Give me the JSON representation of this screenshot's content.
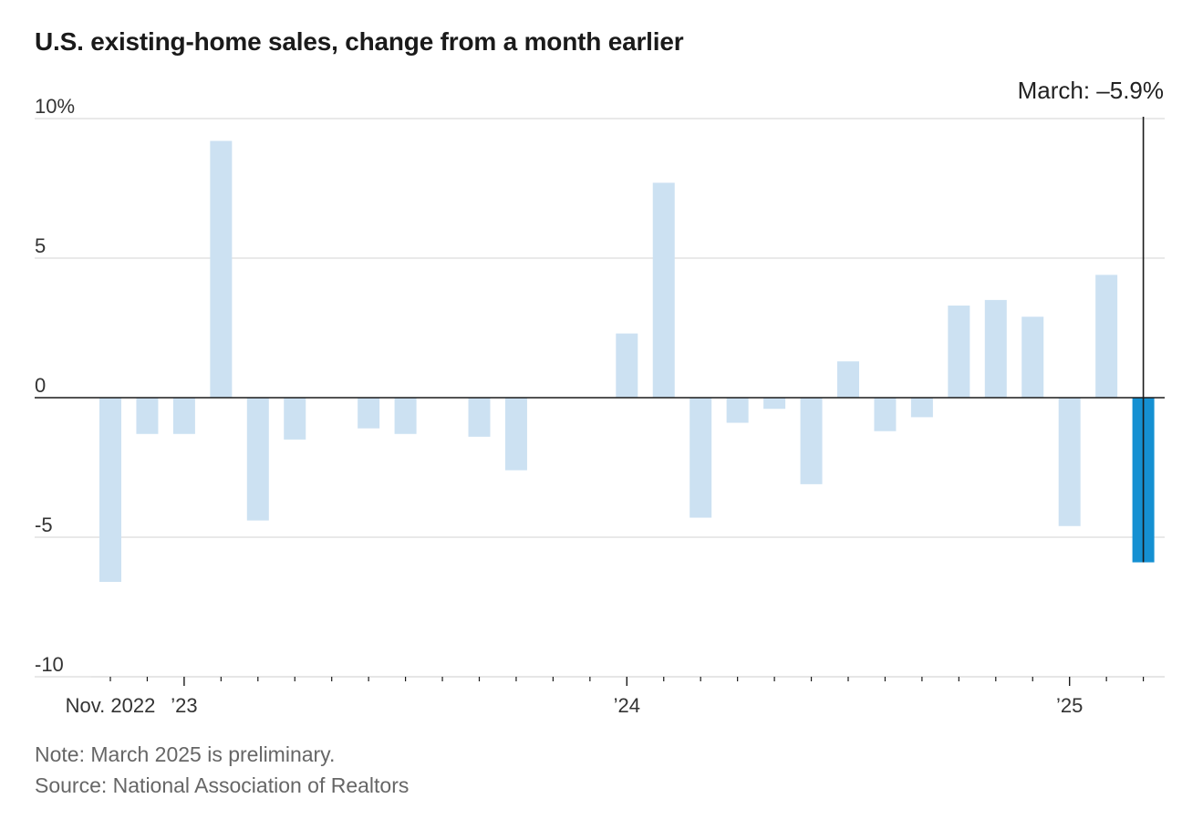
{
  "title": "U.S. existing-home sales, change from a month earlier",
  "note": "Note: March 2025 is preliminary.",
  "source": "Source: National Association of Realtors",
  "colors": {
    "bar": "#cce1f2",
    "highlight": "#1590d2",
    "grid": "#dcdcdc",
    "axis": "#1a1a1a",
    "tick_text": "#333333"
  },
  "chart_data": {
    "type": "bar",
    "title": "U.S. existing-home sales, change from a month earlier",
    "ylabel": "",
    "xlabel": "",
    "ylim": [
      -10,
      10
    ],
    "yticks": [
      10,
      5,
      0,
      -5,
      -10
    ],
    "ytick_labels": [
      "10%",
      "5",
      "0",
      "-5",
      "-10"
    ],
    "categories": [
      "2022-11",
      "2022-12",
      "2023-01",
      "2023-02",
      "2023-03",
      "2023-04",
      "2023-05",
      "2023-06",
      "2023-07",
      "2023-08",
      "2023-09",
      "2023-10",
      "2023-11",
      "2023-12",
      "2024-01",
      "2024-02",
      "2024-03",
      "2024-04",
      "2024-05",
      "2024-06",
      "2024-07",
      "2024-08",
      "2024-09",
      "2024-10",
      "2024-11",
      "2024-12",
      "2025-01",
      "2025-02",
      "2025-03"
    ],
    "values": [
      -6.6,
      -1.3,
      -1.3,
      9.2,
      -4.4,
      -1.5,
      0,
      -1.1,
      -1.3,
      0,
      -1.4,
      -2.6,
      0,
      0,
      2.3,
      7.7,
      -4.3,
      -0.9,
      -0.4,
      -3.1,
      1.3,
      -1.2,
      -0.7,
      3.3,
      3.5,
      2.9,
      -4.6,
      4.4,
      -5.9
    ],
    "highlight_index": 28,
    "x_labels": [
      {
        "index": 0,
        "text": "Nov. 2022"
      },
      {
        "index": 2,
        "text": "’23"
      },
      {
        "index": 14,
        "text": "’24"
      },
      {
        "index": 26,
        "text": "’25"
      }
    ],
    "annotation": {
      "index": 28,
      "text": "March: –5.9%"
    }
  }
}
